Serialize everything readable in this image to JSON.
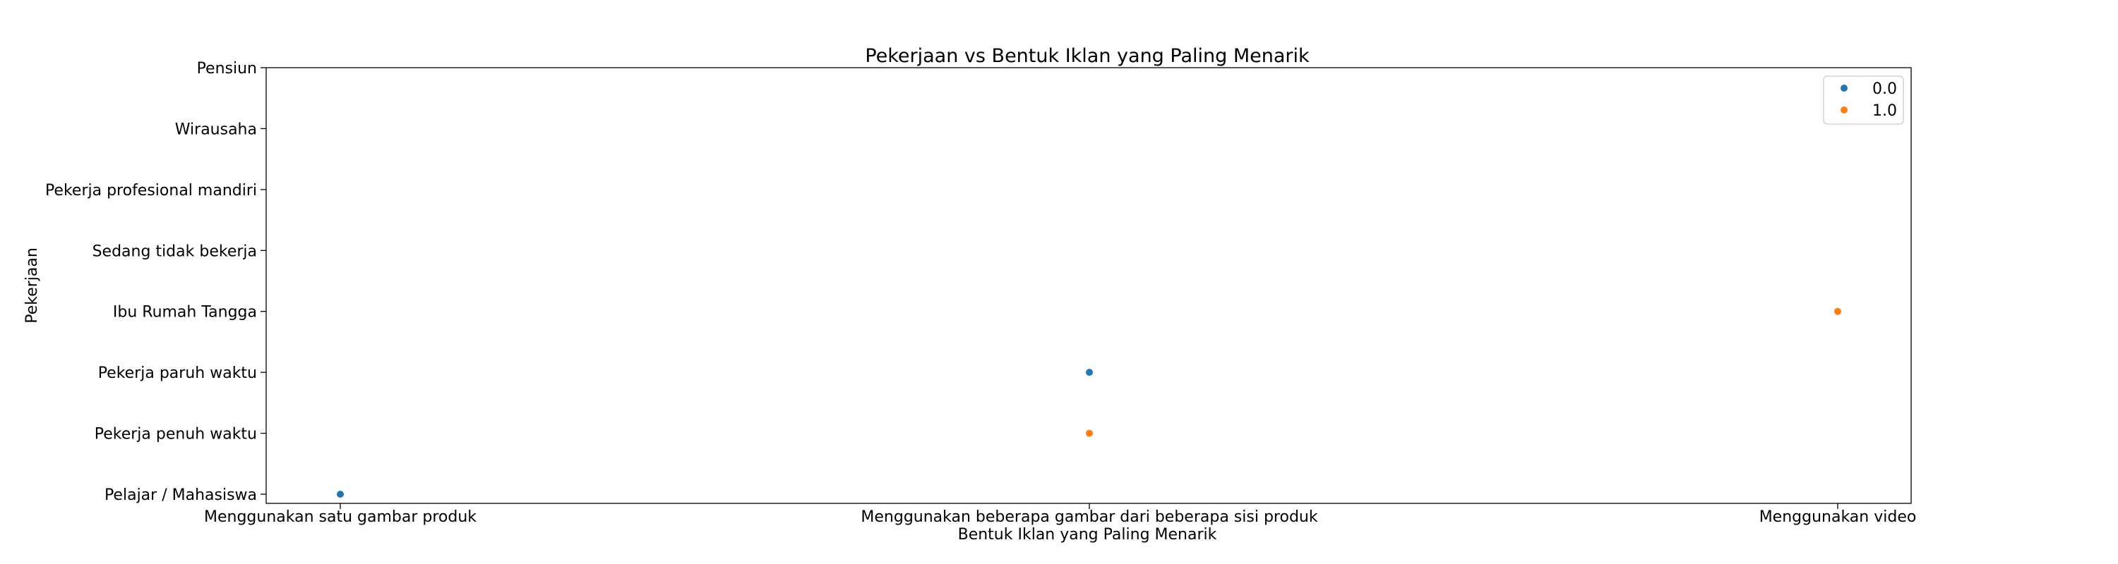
{
  "chart_data": {
    "type": "scatter",
    "title": "Pekerjaan vs Bentuk Iklan yang Paling Menarik",
    "xlabel": "Bentuk Iklan yang Paling Menarik",
    "ylabel": "Pekerjaan",
    "x_categories": [
      "Menggunakan satu gambar produk",
      "Menggunakan beberapa gambar dari beberapa sisi produk",
      "Menggunakan video"
    ],
    "y_categories": [
      "Pelajar / Mahasiswa",
      "Pekerja penuh waktu",
      "Pekerja paruh waktu",
      "Ibu Rumah Tangga",
      "Sedang tidak bekerja",
      "Pekerja profesional mandiri",
      "Wirausaha",
      "Pensiun"
    ],
    "grid": false,
    "legend_position": "top-right",
    "series": [
      {
        "name": "0.0",
        "color": "#1f77b4",
        "points": [
          {
            "x": "Menggunakan satu gambar produk",
            "y": "Pelajar / Mahasiswa"
          },
          {
            "x": "Menggunakan beberapa gambar dari beberapa sisi produk",
            "y": "Pekerja paruh waktu"
          }
        ]
      },
      {
        "name": "1.0",
        "color": "#ff7f0e",
        "points": [
          {
            "x": "Menggunakan beberapa gambar dari beberapa sisi produk",
            "y": "Pekerja penuh waktu"
          },
          {
            "x": "Menggunakan video",
            "y": "Ibu Rumah Tangga"
          }
        ]
      }
    ]
  }
}
